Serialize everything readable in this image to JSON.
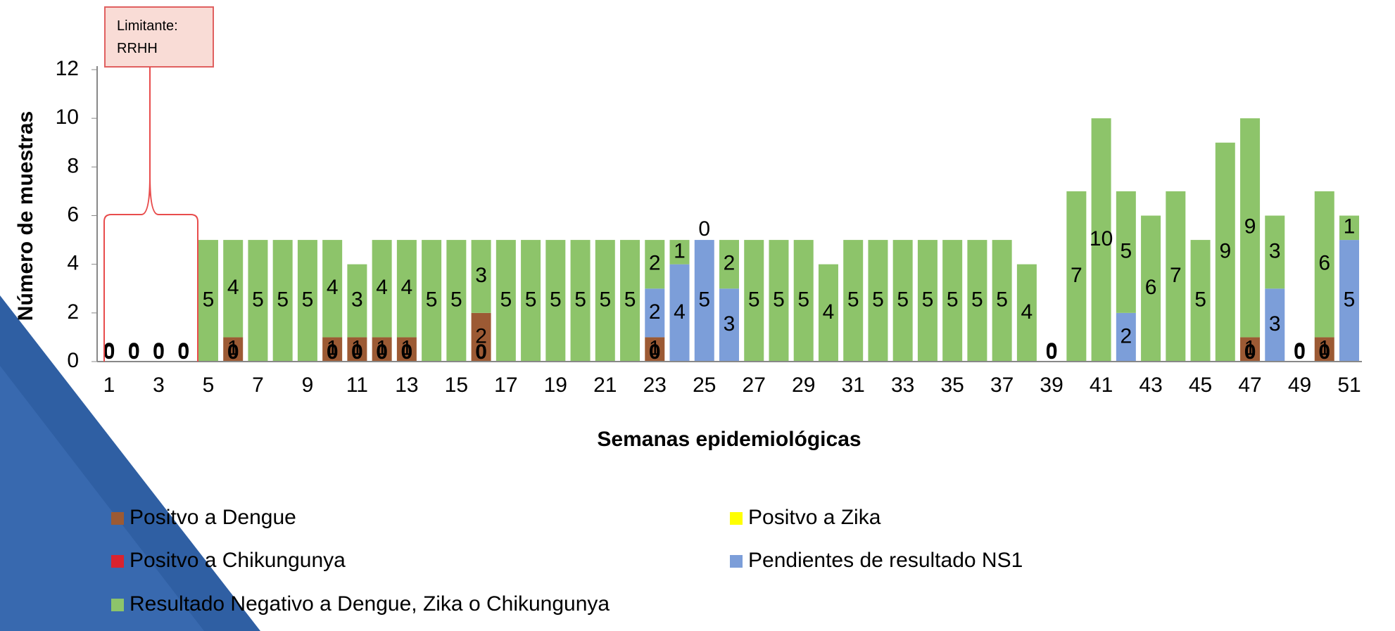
{
  "chart_data": {
    "type": "bar",
    "stacked": true,
    "annotation": "Limitante:\nRRHH",
    "x_label": "Semanas epidemiológicas",
    "y_label": "Número de muestras",
    "categories": [
      1,
      null,
      3,
      null,
      5,
      null,
      7,
      null,
      9,
      null,
      11,
      null,
      13,
      null,
      15,
      null,
      17,
      null,
      19,
      null,
      21,
      null,
      23,
      null,
      25,
      null,
      27,
      null,
      29,
      null,
      31,
      null,
      33,
      null,
      35,
      null,
      37,
      null,
      39,
      null,
      41,
      null,
      43,
      null,
      45,
      null,
      47,
      null,
      49,
      null,
      51
    ],
    "ylim": [
      0,
      12
    ],
    "yticks": [
      0,
      2,
      4,
      6,
      8,
      10,
      12
    ],
    "series": [
      {
        "name": "Positvo a Dengue",
        "color": "#9c5a34",
        "values": [
          0,
          0,
          0,
          0,
          0,
          1,
          0,
          0,
          0,
          1,
          1,
          1,
          1,
          0,
          0,
          2,
          0,
          0,
          0,
          0,
          0,
          0,
          1,
          0,
          0,
          0,
          0,
          0,
          0,
          0,
          0,
          0,
          0,
          0,
          0,
          0,
          0,
          0,
          0,
          0,
          0,
          0,
          0,
          0,
          0,
          0,
          1,
          0,
          0,
          1,
          0
        ]
      },
      {
        "name": "Positvo a Chikungunya",
        "color": "#d9232e",
        "values": [
          0,
          0,
          0,
          0,
          0,
          0,
          0,
          0,
          0,
          0,
          0,
          0,
          0,
          0,
          0,
          0,
          0,
          0,
          0,
          0,
          0,
          0,
          0,
          0,
          0,
          0,
          0,
          0,
          0,
          0,
          0,
          0,
          0,
          0,
          0,
          0,
          0,
          0,
          0,
          0,
          0,
          0,
          0,
          0,
          0,
          0,
          0,
          0,
          0,
          0,
          0
        ]
      },
      {
        "name": "Positvo a  Zika",
        "color": "#ffff00",
        "values": [
          0,
          0,
          0,
          0,
          0,
          0,
          0,
          0,
          0,
          0,
          0,
          0,
          0,
          0,
          0,
          0,
          0,
          0,
          0,
          0,
          0,
          0,
          0,
          0,
          0,
          0,
          0,
          0,
          0,
          0,
          0,
          0,
          0,
          0,
          0,
          0,
          0,
          0,
          0,
          0,
          0,
          0,
          0,
          0,
          0,
          0,
          0,
          0,
          0,
          0,
          0
        ]
      },
      {
        "name": "Pendientes de resultado NS1",
        "color": "#7c9ed9",
        "values": [
          0,
          0,
          0,
          0,
          0,
          0,
          0,
          0,
          0,
          0,
          0,
          0,
          0,
          0,
          0,
          0,
          0,
          0,
          0,
          0,
          0,
          0,
          2,
          4,
          5,
          3,
          0,
          0,
          0,
          0,
          0,
          0,
          0,
          0,
          0,
          0,
          0,
          0,
          0,
          0,
          0,
          2,
          0,
          0,
          0,
          0,
          0,
          3,
          0,
          0,
          5
        ]
      },
      {
        "name": "Resultado Negativo a Dengue, Zika o Chikungunya",
        "color": "#8dc46a",
        "values": [
          0,
          0,
          0,
          0,
          5,
          4,
          5,
          5,
          5,
          4,
          3,
          4,
          4,
          5,
          5,
          3,
          5,
          5,
          5,
          5,
          5,
          5,
          2,
          1,
          0,
          2,
          5,
          5,
          5,
          4,
          5,
          5,
          5,
          5,
          5,
          5,
          5,
          4,
          0,
          7,
          10,
          5,
          6,
          7,
          5,
          9,
          9,
          3,
          0,
          6,
          1
        ]
      }
    ]
  }
}
